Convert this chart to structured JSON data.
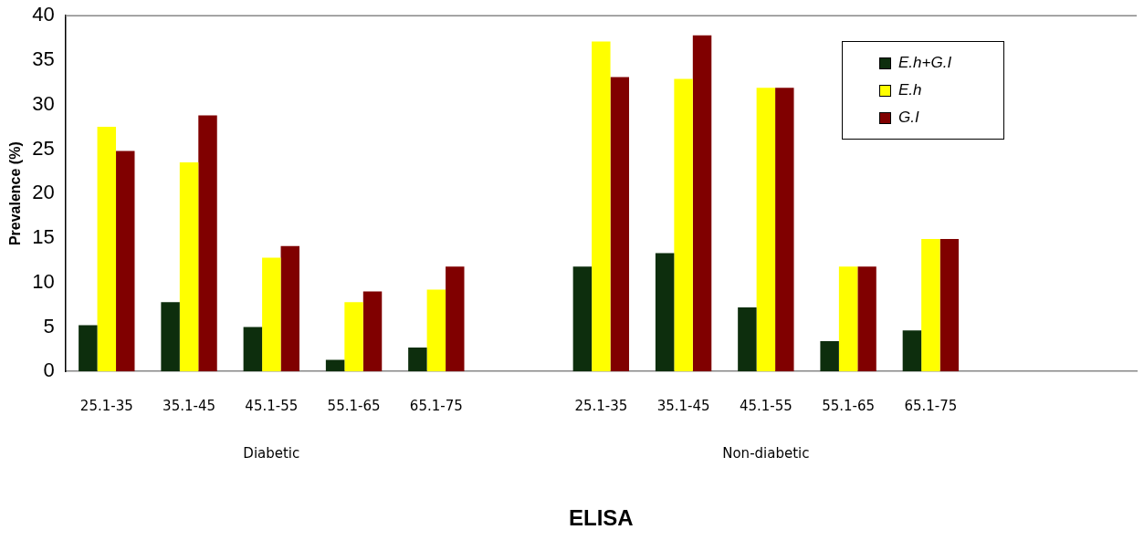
{
  "chart_data": {
    "type": "bar",
    "ylabel": "Prevalence (%)",
    "xlabel": "ELISA",
    "categories": [
      "25.1-35",
      "35.1-45",
      "45.1-55",
      "55.1-65",
      "65.1-75",
      null,
      "25.1-35",
      "35.1-45",
      "45.1-55",
      "55.1-65",
      "65.1-75",
      null,
      null
    ],
    "series": [
      {
        "name": "E.h+G.I",
        "color": "#0d2e0d",
        "values": [
          5.2,
          7.8,
          5.0,
          1.3,
          2.7,
          null,
          11.8,
          13.3,
          7.2,
          3.4,
          4.6,
          null,
          null
        ]
      },
      {
        "name": "E.h",
        "color": "#ffff00",
        "values": [
          27.5,
          23.5,
          12.8,
          7.8,
          9.2,
          null,
          37.1,
          32.9,
          31.9,
          11.8,
          14.9,
          null,
          null
        ]
      },
      {
        "name": "G.I",
        "color": "#800000",
        "values": [
          24.8,
          28.8,
          14.1,
          9.0,
          11.8,
          null,
          33.1,
          37.8,
          31.9,
          11.8,
          14.9,
          null,
          null
        ]
      }
    ],
    "annotations": [
      "Diabetic",
      "Non-diabetic"
    ],
    "ylim": [
      0,
      40
    ],
    "yticks": [
      0,
      5,
      10,
      15,
      20,
      25,
      30,
      35,
      40
    ],
    "grid": false,
    "legend": "top right"
  }
}
